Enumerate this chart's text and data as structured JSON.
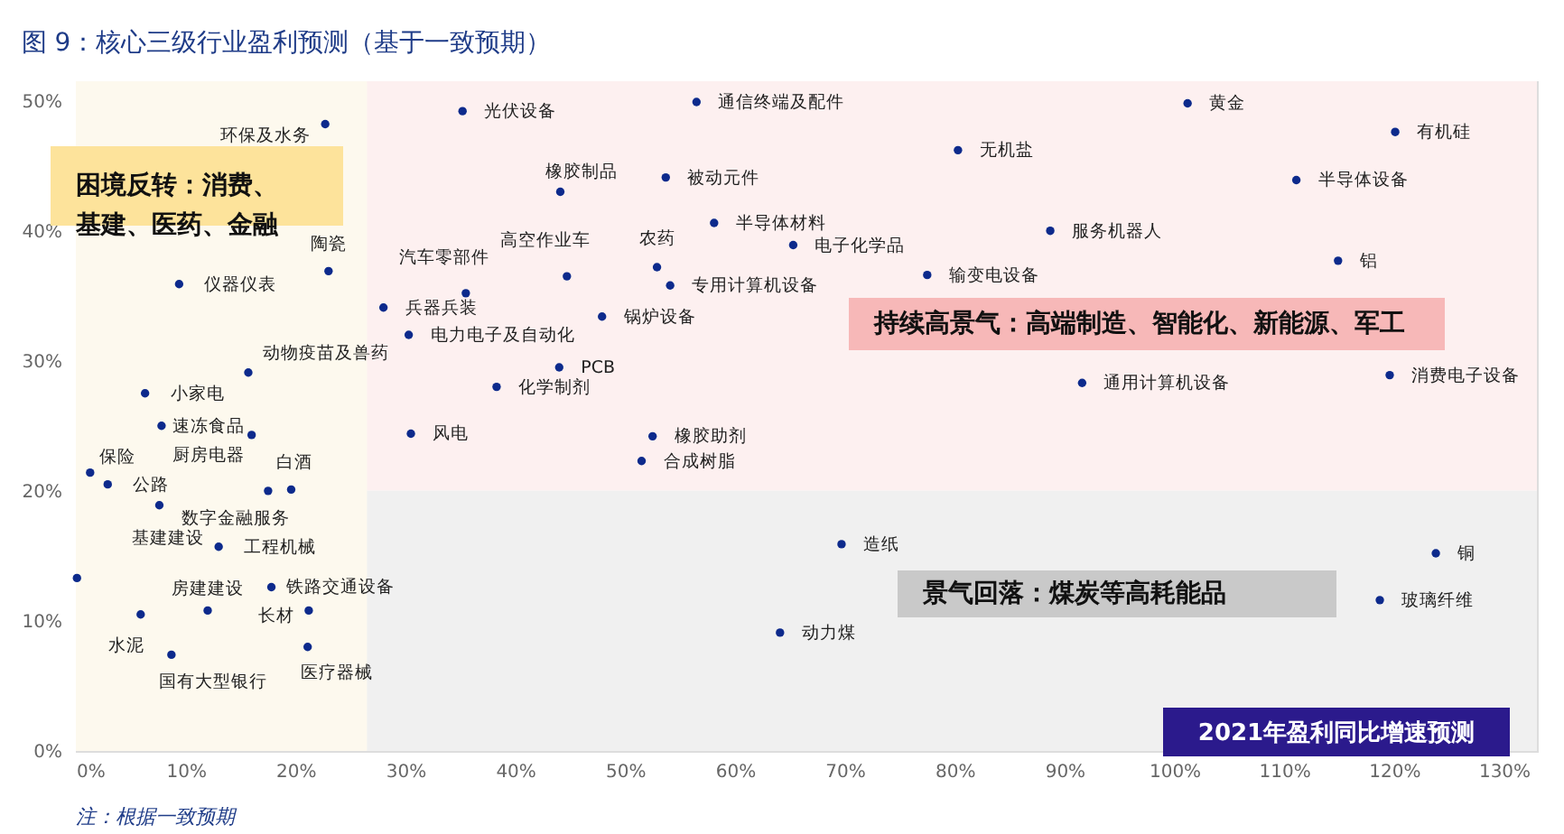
{
  "chart_data": {
    "type": "scatter",
    "title": "图 9：核心三级行业盈利预测（基于一致预期）",
    "xlabel": "2021年盈利同比增速预测",
    "xlim": [
      0,
      133
    ],
    "ylim": [
      0,
      51.5
    ],
    "xticks": [
      {
        "value": 0,
        "label": "0%"
      },
      {
        "value": 10,
        "label": "10%"
      },
      {
        "value": 20,
        "label": "20%"
      },
      {
        "value": 30,
        "label": "30%"
      },
      {
        "value": 40,
        "label": "40%"
      },
      {
        "value": 50,
        "label": "50%"
      },
      {
        "value": 60,
        "label": "60%"
      },
      {
        "value": 70,
        "label": "70%"
      },
      {
        "value": 80,
        "label": "80%"
      },
      {
        "value": 90,
        "label": "90%"
      },
      {
        "value": 100,
        "label": "100%"
      },
      {
        "value": 110,
        "label": "110%"
      },
      {
        "value": 120,
        "label": "120%"
      },
      {
        "value": 130,
        "label": "130%"
      }
    ],
    "yticks": [
      {
        "value": 0,
        "label": "0%"
      },
      {
        "value": 10,
        "label": "10%"
      },
      {
        "value": 20,
        "label": "20%"
      },
      {
        "value": 30,
        "label": "30%"
      },
      {
        "value": 40,
        "label": "40%"
      },
      {
        "value": 50,
        "label": "50%"
      }
    ],
    "grid": false,
    "marker": "circle",
    "series": [
      {
        "color": "#0d2a8c",
        "x": [
          22.7,
          23.0,
          9.4,
          15.7,
          6.3,
          35.5,
          28.0,
          30.3,
          7.8,
          16.0,
          1.3,
          2.9,
          17.5,
          19.6,
          7.6,
          13.0,
          0.1,
          17.8,
          12.0,
          21.2,
          5.9,
          8.7,
          21.1,
          35.2,
          56.5,
          44.1,
          53.7,
          58.1,
          44.7,
          52.9,
          65.3,
          54.1,
          77.5,
          47.9,
          44.0,
          38.3,
          30.5,
          52.5,
          51.5,
          101.2,
          120.1,
          80.3,
          111.1,
          88.7,
          114.9,
          91.6,
          119.6,
          69.7,
          64.1,
          123.8,
          118.7
        ],
        "values": [
          48.2,
          36.9,
          35.9,
          29.1,
          27.5,
          35.2,
          34.1,
          32.0,
          25.0,
          24.3,
          21.4,
          20.5,
          20.0,
          20.1,
          18.9,
          15.7,
          13.3,
          12.6,
          10.8,
          10.8,
          10.5,
          7.4,
          8.0,
          49.2,
          49.9,
          43.0,
          44.1,
          40.6,
          36.5,
          37.2,
          38.9,
          35.8,
          36.6,
          33.4,
          29.5,
          28.0,
          24.4,
          24.2,
          22.3,
          49.8,
          47.6,
          46.2,
          43.9,
          40.0,
          37.7,
          28.3,
          28.9,
          15.9,
          9.1,
          15.2,
          11.6
        ]
      }
    ],
    "bands": [
      {
        "axis": "y",
        "from": 20,
        "to": 51.5,
        "color": "#fdf0f0",
        "label": "持续高景气：高端制造、智能化、新能源、军工"
      },
      {
        "axis": "y",
        "from": 0,
        "to": 20,
        "color": "#f0f0f0",
        "label": "景气回落：煤炭等高耗能品"
      },
      {
        "axis": "x",
        "from": 0,
        "to": 26.5,
        "color": "#fdf9ee",
        "label": "困境反转：消费、基建、医药、金融"
      }
    ],
    "annotations": [
      {
        "text": "环保及水务",
        "x": 22.7,
        "y": 48.2
      },
      {
        "text": "陶瓷",
        "x": 23.0,
        "y": 36.9
      },
      {
        "text": "仪器仪表",
        "x": 9.4,
        "y": 35.9
      },
      {
        "text": "动物疫苗及兽药",
        "x": 15.7,
        "y": 29.1
      },
      {
        "text": "小家电",
        "x": 6.3,
        "y": 27.5
      },
      {
        "text": "汽车零部件",
        "x": 35.5,
        "y": 35.2
      },
      {
        "text": "兵器兵装",
        "x": 28.0,
        "y": 34.1
      },
      {
        "text": "电力电子及自动化",
        "x": 30.3,
        "y": 32.0
      },
      {
        "text": "速冻食品",
        "x": 7.8,
        "y": 25.0
      },
      {
        "text": "厨房电器",
        "x": 16.0,
        "y": 24.3
      },
      {
        "text": "保险",
        "x": 1.3,
        "y": 21.4
      },
      {
        "text": "公路",
        "x": 2.9,
        "y": 20.5
      },
      {
        "text": "数字金融服务",
        "x": 17.5,
        "y": 20.0
      },
      {
        "text": "白酒",
        "x": 19.6,
        "y": 20.1
      },
      {
        "text": "基建建设",
        "x": 7.6,
        "y": 18.9
      },
      {
        "text": "工程机械",
        "x": 13.0,
        "y": 15.7
      },
      {
        "text": "铁路交通设备",
        "x": 17.8,
        "y": 12.6
      },
      {
        "text": "房建建设",
        "x": 12.0,
        "y": 10.8
      },
      {
        "text": "长材",
        "x": 21.2,
        "y": 10.8
      },
      {
        "text": "水泥",
        "x": 5.9,
        "y": 10.5
      },
      {
        "text": "国有大型银行",
        "x": 8.7,
        "y": 7.4
      },
      {
        "text": "医疗器械",
        "x": 21.1,
        "y": 8.0
      },
      {
        "text": "光伏设备",
        "x": 35.2,
        "y": 49.2
      },
      {
        "text": "通信终端及配件",
        "x": 56.5,
        "y": 49.9
      },
      {
        "text": "橡胶制品",
        "x": 44.1,
        "y": 43.0
      },
      {
        "text": "被动元件",
        "x": 53.7,
        "y": 44.1
      },
      {
        "text": "半导体材料",
        "x": 58.1,
        "y": 40.6
      },
      {
        "text": "高空作业车",
        "x": 44.7,
        "y": 36.5
      },
      {
        "text": "农药",
        "x": 52.9,
        "y": 37.2
      },
      {
        "text": "电子化学品",
        "x": 65.3,
        "y": 38.9
      },
      {
        "text": "专用计算机设备",
        "x": 54.1,
        "y": 35.8
      },
      {
        "text": "输变电设备",
        "x": 77.5,
        "y": 36.6
      },
      {
        "text": "锅炉设备",
        "x": 47.9,
        "y": 33.4
      },
      {
        "text": "PCB",
        "x": 44.0,
        "y": 29.5
      },
      {
        "text": "化学制剂",
        "x": 38.3,
        "y": 28.0
      },
      {
        "text": "风电",
        "x": 30.5,
        "y": 24.4
      },
      {
        "text": "橡胶助剂",
        "x": 52.5,
        "y": 24.2
      },
      {
        "text": "合成树脂",
        "x": 51.5,
        "y": 22.3
      },
      {
        "text": "黄金",
        "x": 101.2,
        "y": 49.8
      },
      {
        "text": "有机硅",
        "x": 120.1,
        "y": 47.6
      },
      {
        "text": "无机盐",
        "x": 80.3,
        "y": 46.2
      },
      {
        "text": "半导体设备",
        "x": 111.1,
        "y": 43.9
      },
      {
        "text": "服务机器人",
        "x": 88.7,
        "y": 40.0
      },
      {
        "text": "铝",
        "x": 114.9,
        "y": 37.7
      },
      {
        "text": "通用计算机设备",
        "x": 91.6,
        "y": 28.3
      },
      {
        "text": "消费电子设备",
        "x": 119.6,
        "y": 28.9
      },
      {
        "text": "造纸",
        "x": 69.7,
        "y": 15.9
      },
      {
        "text": "动力煤",
        "x": 64.1,
        "y": 9.1
      },
      {
        "text": "铜",
        "x": 123.8,
        "y": 15.2
      },
      {
        "text": "玻璃纤维",
        "x": 118.7,
        "y": 11.6
      },
      "注：根据一致预期"
    ]
  }
}
